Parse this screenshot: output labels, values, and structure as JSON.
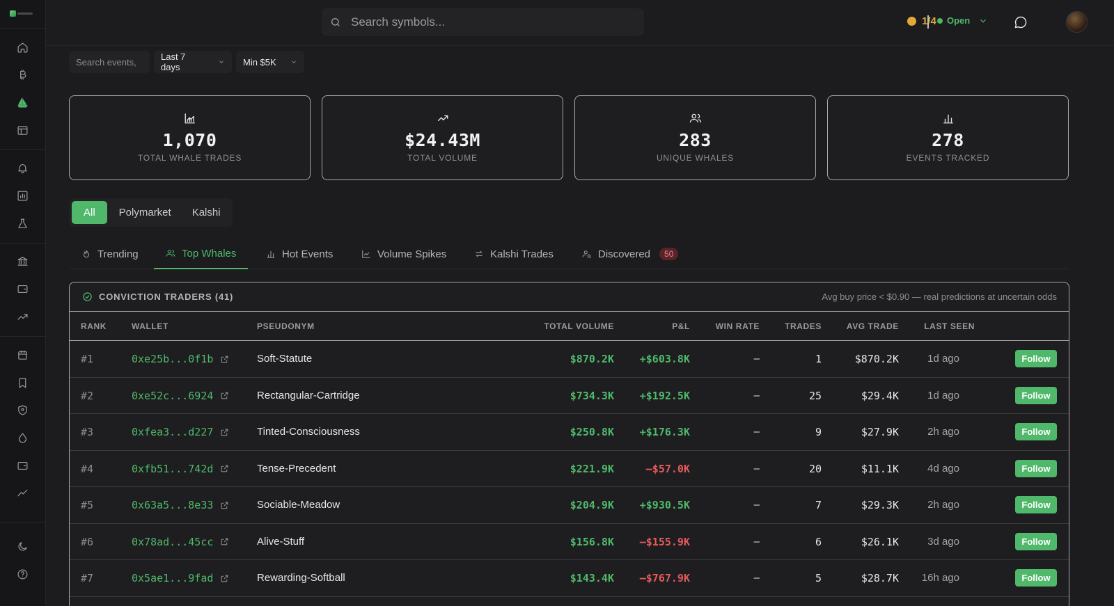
{
  "topbar": {
    "search_placeholder": "Search symbols...",
    "credits": "1/4",
    "status": "Open"
  },
  "filters": {
    "search_placeholder": "Search events,",
    "timeframe": "Last 7 days",
    "min_size": "Min $5K"
  },
  "stats": [
    {
      "value": "1,070",
      "label": "TOTAL WHALE TRADES",
      "icon": "area-chart-icon"
    },
    {
      "value": "$24.43M",
      "label": "TOTAL VOLUME",
      "icon": "trending-up-icon"
    },
    {
      "value": "283",
      "label": "UNIQUE WHALES",
      "icon": "users-icon"
    },
    {
      "value": "278",
      "label": "EVENTS TRACKED",
      "icon": "bar-chart-icon"
    }
  ],
  "sources": [
    "All",
    "Polymarket",
    "Kalshi"
  ],
  "tabs": [
    {
      "label": "Trending",
      "icon": "flame-icon"
    },
    {
      "label": "Top Whales",
      "icon": "users-icon"
    },
    {
      "label": "Hot Events",
      "icon": "bar-chart-icon"
    },
    {
      "label": "Volume Spikes",
      "icon": "area-chart-icon"
    },
    {
      "label": "Kalshi Trades",
      "icon": "swap-icon"
    },
    {
      "label": "Discovered",
      "icon": "user-search-icon",
      "badge": "50"
    }
  ],
  "table": {
    "title": "CONVICTION TRADERS (41)",
    "note": "Avg buy price < $0.90 — real predictions at uncertain odds",
    "columns": [
      "RANK",
      "WALLET",
      "PSEUDONYM",
      "TOTAL VOLUME",
      "P&L",
      "WIN RATE",
      "TRADES",
      "AVG TRADE",
      "LAST SEEN"
    ],
    "follow_label": "Follow",
    "rows": [
      {
        "rank": "#1",
        "wallet": "0xe25b...0f1b",
        "pseudonym": "Soft-Statute",
        "volume": "$870.2K",
        "pnl": "+$603.8K",
        "win_rate": "–",
        "trades": "1",
        "avg": "$870.2K",
        "seen": "1d ago"
      },
      {
        "rank": "#2",
        "wallet": "0xe52c...6924",
        "pseudonym": "Rectangular-Cartridge",
        "volume": "$734.3K",
        "pnl": "+$192.5K",
        "win_rate": "–",
        "trades": "25",
        "avg": "$29.4K",
        "seen": "1d ago"
      },
      {
        "rank": "#3",
        "wallet": "0xfea3...d227",
        "pseudonym": "Tinted-Consciousness",
        "volume": "$250.8K",
        "pnl": "+$176.3K",
        "win_rate": "–",
        "trades": "9",
        "avg": "$27.9K",
        "seen": "2h ago"
      },
      {
        "rank": "#4",
        "wallet": "0xfb51...742d",
        "pseudonym": "Tense-Precedent",
        "volume": "$221.9K",
        "pnl": "–$57.0K",
        "win_rate": "–",
        "trades": "20",
        "avg": "$11.1K",
        "seen": "4d ago"
      },
      {
        "rank": "#5",
        "wallet": "0x63a5...8e33",
        "pseudonym": "Sociable-Meadow",
        "volume": "$204.9K",
        "pnl": "+$930.5K",
        "win_rate": "–",
        "trades": "7",
        "avg": "$29.3K",
        "seen": "2h ago"
      },
      {
        "rank": "#6",
        "wallet": "0x78ad...45cc",
        "pseudonym": "Alive-Stuff",
        "volume": "$156.8K",
        "pnl": "–$155.9K",
        "win_rate": "–",
        "trades": "6",
        "avg": "$26.1K",
        "seen": "3d ago"
      },
      {
        "rank": "#7",
        "wallet": "0x5ae1...9fad",
        "pseudonym": "Rewarding-Softball",
        "volume": "$143.4K",
        "pnl": "–$767.9K",
        "win_rate": "–",
        "trades": "5",
        "avg": "$28.7K",
        "seen": "16h ago"
      }
    ]
  },
  "colors": {
    "accent": "#4fb86a",
    "negative": "#e25b5b",
    "warning": "#e2a838",
    "background": "#1c1c1e"
  }
}
